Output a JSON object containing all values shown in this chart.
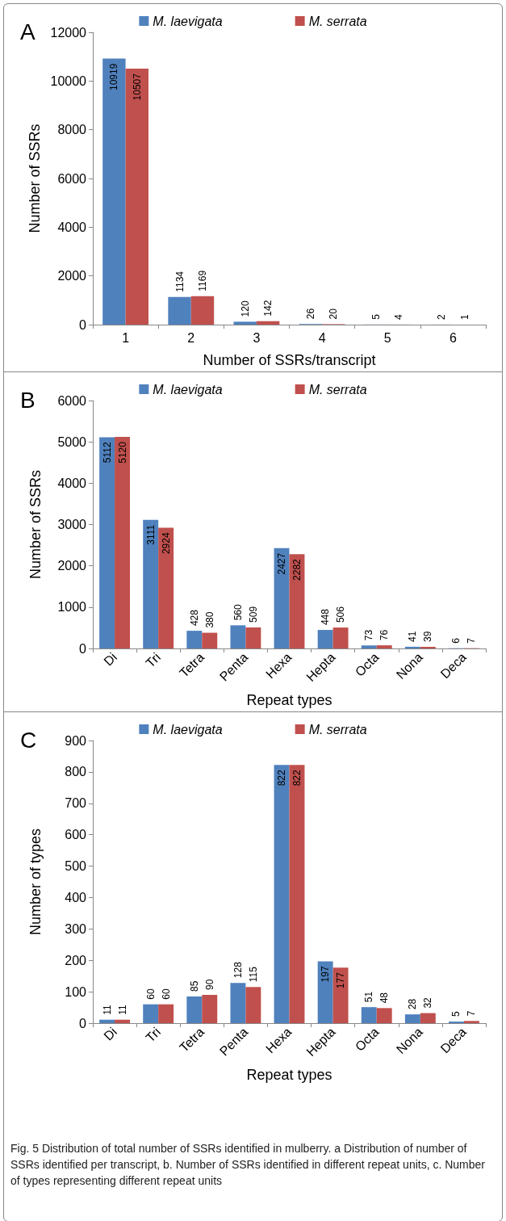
{
  "chart_data": [
    {
      "type": "bar",
      "title": "A",
      "xlabel": "Number of SSRs/transcript",
      "ylabel": "Number of SSRs",
      "categories": [
        "1",
        "2",
        "3",
        "4",
        "5",
        "6"
      ],
      "series": [
        {
          "name": "M. laevigata",
          "color": "#4f81bd",
          "values": [
            10919,
            1134,
            120,
            26,
            5,
            2
          ]
        },
        {
          "name": "M. serrata",
          "color": "#c0504d",
          "values": [
            10507,
            1169,
            142,
            20,
            4,
            1
          ]
        }
      ],
      "ylim": [
        0,
        12000
      ],
      "yticks": [
        0,
        2000,
        4000,
        6000,
        8000,
        10000,
        12000
      ],
      "legend": "top",
      "data_labels": true,
      "grid": false
    },
    {
      "type": "bar",
      "title": "B",
      "xlabel": "Repeat types",
      "ylabel": "Number of SSRs",
      "categories": [
        "Di",
        "Tri",
        "Tetra",
        "Penta",
        "Hexa",
        "Hepta",
        "Octa",
        "Nona",
        "Deca"
      ],
      "series": [
        {
          "name": "M. laevigata",
          "color": "#4f81bd",
          "values": [
            5112,
            3111,
            428,
            560,
            2427,
            448,
            73,
            41,
            6
          ]
        },
        {
          "name": "M. serrata",
          "color": "#c0504d",
          "values": [
            5120,
            2924,
            380,
            509,
            2282,
            506,
            76,
            39,
            7
          ]
        }
      ],
      "ylim": [
        0,
        6000
      ],
      "yticks": [
        0,
        1000,
        2000,
        3000,
        4000,
        5000,
        6000
      ],
      "legend": "top",
      "data_labels": true,
      "grid": false
    },
    {
      "type": "bar",
      "title": "C",
      "xlabel": "Repeat types",
      "ylabel": "Number of types",
      "categories": [
        "Di",
        "Tri",
        "Tetra",
        "Penta",
        "Hexa",
        "Hepta",
        "Octa",
        "Nona",
        "Deca"
      ],
      "series": [
        {
          "name": "M. laevigata",
          "color": "#4f81bd",
          "values": [
            11,
            60,
            85,
            128,
            822,
            197,
            51,
            28,
            5
          ]
        },
        {
          "name": "M. serrata",
          "color": "#c0504d",
          "values": [
            11,
            60,
            90,
            115,
            822,
            177,
            48,
            32,
            7
          ]
        }
      ],
      "ylim": [
        0,
        900
      ],
      "yticks": [
        0,
        100,
        200,
        300,
        400,
        500,
        600,
        700,
        800,
        900
      ],
      "legend": "top",
      "data_labels": true,
      "grid": false,
      "annotations": [
        "Fig. 5 Distribution of total number of SSRs identified in mulberry. a Distribution of number of SSRs identified per transcript, b. Number of SSRs identified in different repeat units, c. Number of types representing different repeat units"
      ]
    }
  ]
}
